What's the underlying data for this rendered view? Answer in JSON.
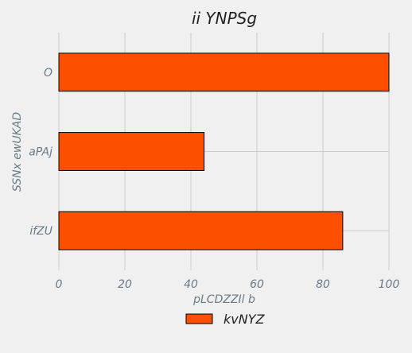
{
  "chart_data": {
    "type": "bar",
    "orientation": "horizontal",
    "title": "ii YNPSg",
    "xlabel": "pLCDZZIl b",
    "ylabel": "SSNx ewUKAD",
    "categories": [
      "O",
      "aPAj",
      "ifZU"
    ],
    "series": [
      {
        "name": "kvNYZ",
        "values": [
          100,
          44,
          86
        ]
      }
    ],
    "xlim": [
      0,
      100
    ],
    "xticks": [
      0,
      20,
      40,
      60,
      80,
      100
    ],
    "grid": true,
    "legend_position": "bottom-center",
    "colors": {
      "bar": "#fc4f00",
      "bar_edge": "#000000",
      "background": "#f0f0f0",
      "grid": "#cbcbcb"
    }
  }
}
